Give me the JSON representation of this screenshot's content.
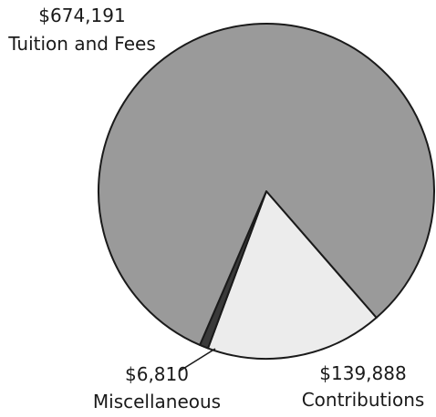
{
  "chart_data": {
    "type": "pie",
    "title": "",
    "slices": [
      {
        "value": 674191,
        "value_label": "$674,191",
        "category": "Tuition and Fees",
        "color": "#9a9a9a"
      },
      {
        "value": 139888,
        "value_label": "$139,888",
        "category": "Contributions",
        "color": "#ececec"
      },
      {
        "value": 6810,
        "value_label": "$6,810",
        "category": "Miscellaneous",
        "color": "#3a3a3a"
      }
    ],
    "legend": "none",
    "outline_color": "#1a1a1a"
  }
}
